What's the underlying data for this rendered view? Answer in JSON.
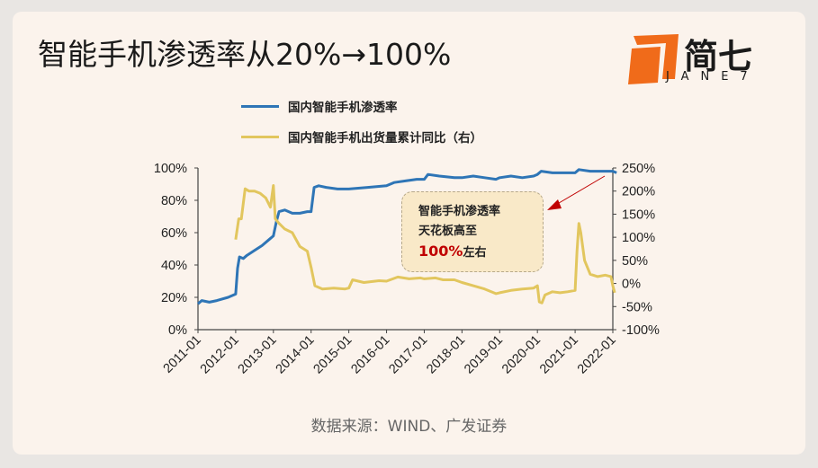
{
  "header": {
    "title": "智能手机渗透率从20%→100%"
  },
  "logo": {
    "name": "简七",
    "sub": "JANE7",
    "color": "#f06b1a"
  },
  "legend": [
    {
      "label": "国内智能手机渗透率",
      "color": "#2e75b6"
    },
    {
      "label": "国内智能手机出货量累计同比（右）",
      "color": "#e2c65e"
    }
  ],
  "annotation": {
    "line1": "智能手机渗透率",
    "line2": "天花板高至",
    "highlight": "100%",
    "suffix": "左右"
  },
  "source": "数据来源：WIND、广发证券",
  "chart_data": {
    "type": "line",
    "x_tick_labels": [
      "2011-01",
      "2012-01",
      "2013-01",
      "2014-01",
      "2015-01",
      "2016-01",
      "2017-01",
      "2018-01",
      "2019-01",
      "2020-01",
      "2021-01",
      "2022-01"
    ],
    "left_axis": {
      "ticks": [
        "100%",
        "80%",
        "60%",
        "40%",
        "20%",
        "0%"
      ],
      "ylim": [
        0,
        100
      ]
    },
    "right_axis": {
      "ticks": [
        "250%",
        "200%",
        "150%",
        "100%",
        "50%",
        "0%",
        "-50%",
        "-100%"
      ],
      "ylim": [
        -100,
        250
      ]
    },
    "series": [
      {
        "name": "国内智能手机渗透率",
        "axis": "left",
        "color": "#2e75b6",
        "points": [
          [
            2011.0,
            16
          ],
          [
            2011.1,
            18
          ],
          [
            2011.3,
            17
          ],
          [
            2011.5,
            18
          ],
          [
            2011.8,
            20
          ],
          [
            2012.0,
            22
          ],
          [
            2012.05,
            38
          ],
          [
            2012.1,
            45
          ],
          [
            2012.2,
            44
          ],
          [
            2012.3,
            46
          ],
          [
            2012.5,
            49
          ],
          [
            2012.7,
            52
          ],
          [
            2012.9,
            56
          ],
          [
            2013.0,
            58
          ],
          [
            2013.08,
            67
          ],
          [
            2013.15,
            73
          ],
          [
            2013.3,
            74
          ],
          [
            2013.5,
            72
          ],
          [
            2013.7,
            72
          ],
          [
            2013.9,
            73
          ],
          [
            2014.0,
            73
          ],
          [
            2014.08,
            88
          ],
          [
            2014.2,
            89
          ],
          [
            2014.4,
            88
          ],
          [
            2014.7,
            87
          ],
          [
            2015.0,
            87
          ],
          [
            2015.5,
            88
          ],
          [
            2016.0,
            89
          ],
          [
            2016.2,
            91
          ],
          [
            2016.5,
            92
          ],
          [
            2016.8,
            93
          ],
          [
            2017.0,
            93
          ],
          [
            2017.1,
            96
          ],
          [
            2017.4,
            95
          ],
          [
            2017.8,
            94
          ],
          [
            2018.0,
            94
          ],
          [
            2018.3,
            95
          ],
          [
            2018.6,
            94
          ],
          [
            2018.9,
            93
          ],
          [
            2019.0,
            94
          ],
          [
            2019.3,
            95
          ],
          [
            2019.6,
            94
          ],
          [
            2019.9,
            95
          ],
          [
            2020.0,
            96
          ],
          [
            2020.1,
            98
          ],
          [
            2020.4,
            97
          ],
          [
            2020.7,
            97
          ],
          [
            2021.0,
            97
          ],
          [
            2021.1,
            99
          ],
          [
            2021.4,
            98
          ],
          [
            2021.7,
            98
          ],
          [
            2022.0,
            98
          ],
          [
            2022.1,
            97
          ]
        ]
      },
      {
        "name": "国内智能手机出货量累计同比（右）",
        "axis": "right",
        "color": "#e2c65e",
        "points": [
          [
            2012.0,
            95
          ],
          [
            2012.08,
            140
          ],
          [
            2012.15,
            140
          ],
          [
            2012.25,
            205
          ],
          [
            2012.35,
            200
          ],
          [
            2012.5,
            200
          ],
          [
            2012.65,
            195
          ],
          [
            2012.8,
            185
          ],
          [
            2012.92,
            165
          ],
          [
            2013.0,
            212
          ],
          [
            2013.05,
            140
          ],
          [
            2013.15,
            130
          ],
          [
            2013.3,
            118
          ],
          [
            2013.5,
            110
          ],
          [
            2013.7,
            80
          ],
          [
            2013.9,
            70
          ],
          [
            2014.0,
            35
          ],
          [
            2014.1,
            -5
          ],
          [
            2014.3,
            -12
          ],
          [
            2014.6,
            -10
          ],
          [
            2014.9,
            -12
          ],
          [
            2015.0,
            -10
          ],
          [
            2015.1,
            8
          ],
          [
            2015.4,
            2
          ],
          [
            2015.8,
            6
          ],
          [
            2016.0,
            5
          ],
          [
            2016.3,
            14
          ],
          [
            2016.6,
            10
          ],
          [
            2016.9,
            12
          ],
          [
            2017.0,
            10
          ],
          [
            2017.3,
            12
          ],
          [
            2017.5,
            8
          ],
          [
            2017.8,
            8
          ],
          [
            2018.0,
            2
          ],
          [
            2018.3,
            -5
          ],
          [
            2018.6,
            -12
          ],
          [
            2018.9,
            -22
          ],
          [
            2019.0,
            -20
          ],
          [
            2019.3,
            -15
          ],
          [
            2019.6,
            -12
          ],
          [
            2019.9,
            -10
          ],
          [
            2020.0,
            -5
          ],
          [
            2020.05,
            -40
          ],
          [
            2020.12,
            -42
          ],
          [
            2020.2,
            -25
          ],
          [
            2020.4,
            -18
          ],
          [
            2020.6,
            -20
          ],
          [
            2020.8,
            -18
          ],
          [
            2021.0,
            -15
          ],
          [
            2021.05,
            70
          ],
          [
            2021.1,
            130
          ],
          [
            2021.15,
            110
          ],
          [
            2021.25,
            50
          ],
          [
            2021.4,
            20
          ],
          [
            2021.6,
            15
          ],
          [
            2021.8,
            18
          ],
          [
            2021.95,
            15
          ],
          [
            2022.0,
            -5
          ],
          [
            2022.05,
            -20
          ]
        ]
      }
    ],
    "grid": false,
    "legend_position": "top-left"
  }
}
